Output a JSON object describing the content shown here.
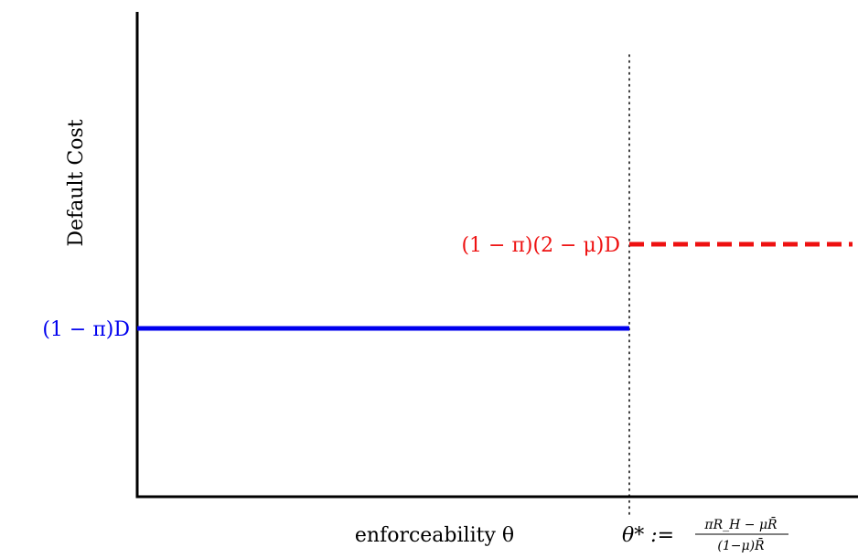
{
  "chart_data": {
    "type": "line",
    "xlabel": "enforceability θ",
    "ylabel": "Default Cost",
    "threshold": {
      "label": "θ* :=",
      "formula_numerator": "πR_H − μR̄",
      "formula_denominator": "(1−μ)R̄",
      "style": "dotted"
    },
    "series": [
      {
        "name": "(1 − π)D",
        "color": "#0000ee",
        "style": "solid",
        "segment": "below-threshold",
        "relative_level": 1.0
      },
      {
        "name": "(1 − π)(2 − μ)D",
        "color": "#ee1111",
        "style": "dashed",
        "segment": "above-threshold",
        "relative_level": 1.5
      }
    ],
    "grid": false,
    "legend": "none"
  }
}
